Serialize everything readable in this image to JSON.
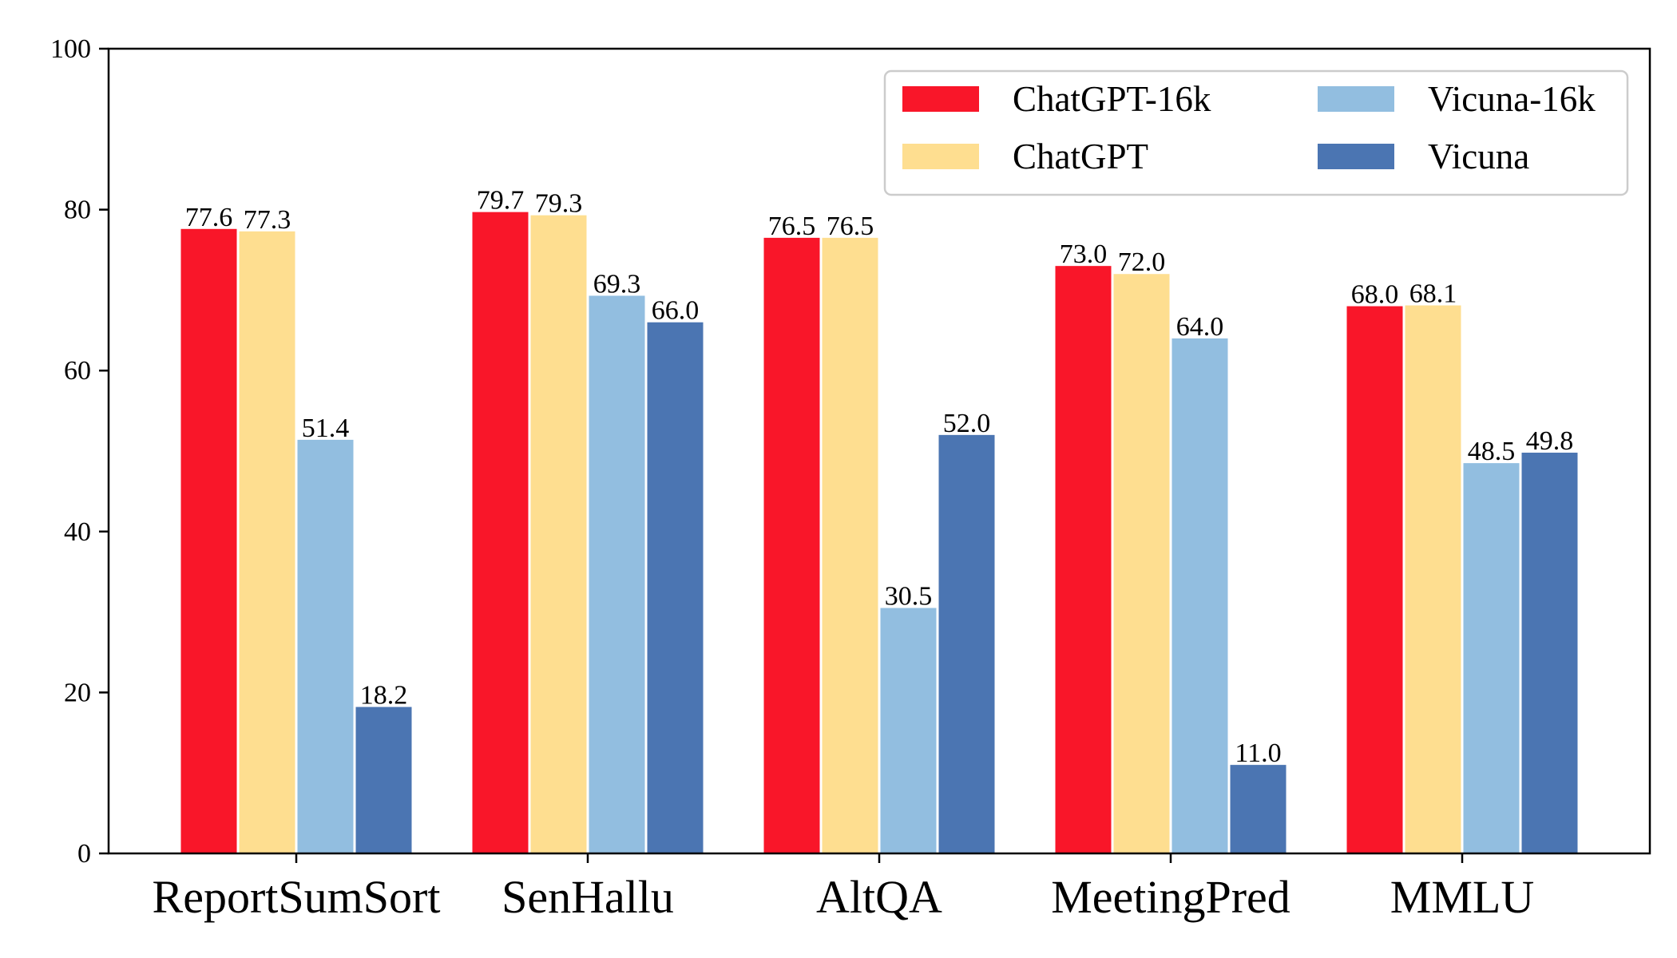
{
  "chart_data": {
    "type": "bar",
    "title": "",
    "xlabel": "",
    "ylabel": "",
    "ylim": [
      0,
      100
    ],
    "yticks": [
      0,
      20,
      40,
      60,
      80,
      100
    ],
    "grid": false,
    "legend_position": "top-right",
    "categories": [
      "ReportSumSort",
      "SenHallu",
      "AltQA",
      "MeetingPred",
      "MMLU"
    ],
    "series": [
      {
        "name": "ChatGPT-16k",
        "color": "#f91629",
        "values": [
          77.6,
          79.7,
          76.5,
          73.0,
          68.0
        ],
        "labels": [
          "77.6",
          "79.7",
          "76.5",
          "73.0",
          "68.0"
        ]
      },
      {
        "name": "ChatGPT",
        "color": "#fede90",
        "values": [
          77.3,
          79.3,
          76.5,
          72.0,
          68.1
        ],
        "labels": [
          "77.3",
          "79.3",
          "76.5",
          "72.0",
          "68.1"
        ]
      },
      {
        "name": "Vicuna-16k",
        "color": "#92bee0",
        "values": [
          51.4,
          69.3,
          30.5,
          64.0,
          48.5
        ],
        "labels": [
          "51.4",
          "69.3",
          "30.5",
          "64.0",
          "48.5"
        ]
      },
      {
        "name": "Vicuna",
        "color": "#4b75b2",
        "values": [
          18.2,
          66.0,
          52.0,
          11.0,
          49.8
        ],
        "labels": [
          "18.2",
          "66.0",
          "52.0",
          "11.0",
          "49.8"
        ]
      }
    ]
  }
}
